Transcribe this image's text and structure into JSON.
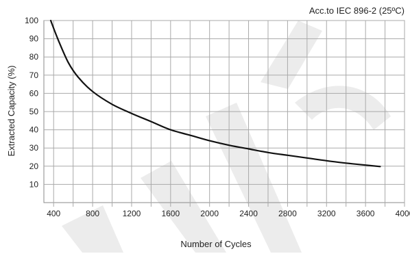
{
  "chart_data": {
    "type": "line",
    "annotation": "Acc.to IEC 896-2 (25ºC)",
    "xlabel": "Number of Cycles",
    "ylabel": "Extracted Capacity (%)",
    "xlim": [
      300,
      4000
    ],
    "ylim": [
      0,
      100
    ],
    "xticks": [
      400,
      800,
      1200,
      1600,
      2000,
      2400,
      2800,
      3200,
      3600,
      4000
    ],
    "yticks": [
      10,
      20,
      30,
      40,
      50,
      60,
      70,
      80,
      90,
      100
    ],
    "grid": true,
    "series": [
      {
        "color": "#111111",
        "x": [
          370,
          450,
          550,
          650,
          800,
          1000,
          1200,
          1400,
          1600,
          1800,
          2000,
          2200,
          2400,
          2600,
          2800,
          3000,
          3200,
          3400,
          3600,
          3750
        ],
        "y": [
          100,
          89,
          77,
          69,
          61,
          54,
          49,
          44.5,
          40,
          37,
          34,
          31.5,
          29.5,
          27.5,
          26,
          24.5,
          23,
          21.7,
          20.6,
          19.8
        ]
      }
    ],
    "watermark": {
      "color": "#ececec"
    }
  }
}
